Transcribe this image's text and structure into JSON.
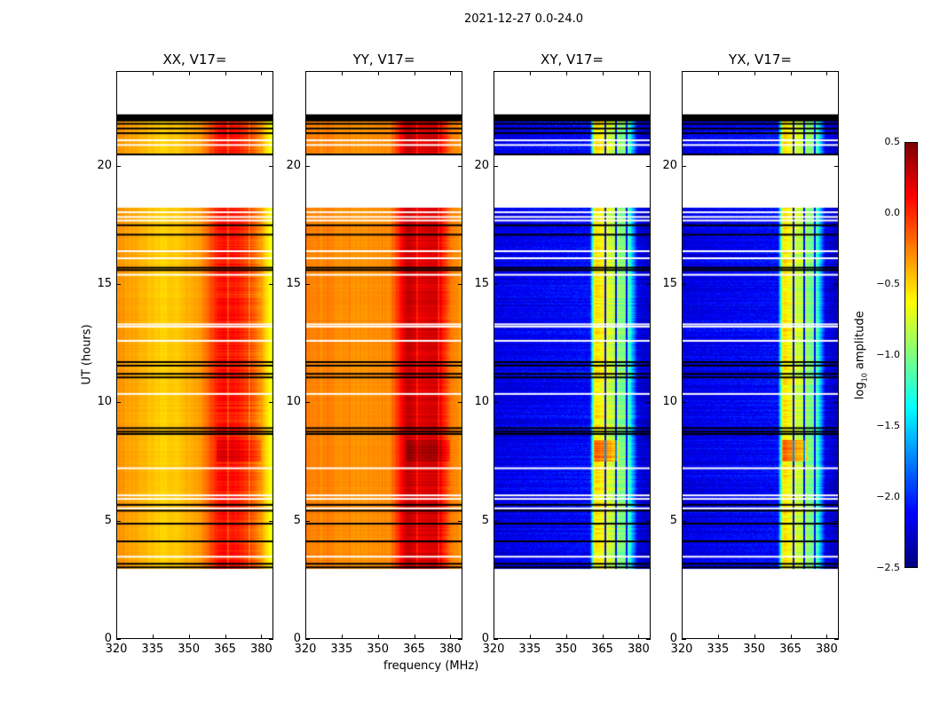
{
  "chart_data": {
    "type": "heatmap",
    "title": "2021-12-27 0.0-24.0",
    "xlabel": "frequency (MHz)",
    "ylabel": "UT (hours)",
    "xlim": [
      320,
      385
    ],
    "ylim": [
      0,
      24
    ],
    "xticks": [
      320,
      335,
      350,
      365,
      380
    ],
    "yticks": [
      0,
      5,
      10,
      15,
      20
    ],
    "panels": [
      {
        "title": "XX, V17=",
        "pol": "XX"
      },
      {
        "title": "YY, V17=",
        "pol": "YY"
      },
      {
        "title": "XY, V17=",
        "pol": "XY"
      },
      {
        "title": "YX, V17=",
        "pol": "YX"
      }
    ],
    "colorbar": {
      "label": "log10 amplitude",
      "label_main": "log",
      "label_sub": "10",
      "label_rest": " amplitude",
      "colormap": "jet",
      "clim": [
        -2.5,
        0.5
      ],
      "ticks": [
        "0.5",
        "0.0",
        "−0.5",
        "−1.0",
        "−1.5",
        "−2.0",
        "−2.5"
      ],
      "tick_values": [
        0.5,
        0.0,
        -0.5,
        -1.0,
        -1.5,
        -2.0,
        -2.5
      ]
    },
    "data_segments_hours": [
      [
        2.95,
        18.25
      ],
      [
        20.45,
        22.2
      ]
    ],
    "flagged_black_hours": [
      21.4,
      21.6,
      21.8,
      22.0,
      22.1,
      20.5,
      17.5,
      17.1,
      15.7,
      15.6,
      11.7,
      11.55,
      11.2,
      11.05,
      8.9,
      8.75,
      8.65,
      5.65,
      5.4,
      4.85,
      4.1,
      3.15,
      3.0
    ],
    "missing_white_hours": [
      21.1,
      20.9,
      18.05,
      17.85,
      17.7,
      16.4,
      16.1,
      15.4,
      13.3,
      13.2,
      12.6,
      10.35,
      7.2,
      6.05,
      5.9,
      5.5,
      3.45
    ],
    "typical_log10_amplitude": {
      "XX": {
        "freq_MHz": [
          320,
          340,
          355,
          362,
          368,
          375,
          380,
          385
        ],
        "value": [
          -0.3,
          -0.5,
          -0.35,
          0.05,
          0.1,
          -0.05,
          -0.3,
          -0.75
        ]
      },
      "YY": {
        "freq_MHz": [
          320,
          340,
          355,
          362,
          368,
          375,
          380,
          385
        ],
        "value": [
          -0.25,
          -0.3,
          -0.3,
          0.3,
          0.2,
          0.25,
          -0.2,
          -0.35
        ]
      },
      "XY": {
        "freq_MHz": [
          320,
          360,
          362,
          366,
          371,
          376,
          380,
          385
        ],
        "value": [
          -2.2,
          -2.1,
          -0.55,
          -0.65,
          -0.9,
          -1.1,
          -2.2,
          -2.3
        ]
      },
      "YX": {
        "freq_MHz": [
          320,
          360,
          362,
          366,
          371,
          376,
          380,
          385
        ],
        "value": [
          -2.2,
          -2.1,
          -0.55,
          -0.65,
          -0.9,
          -1.1,
          -2.2,
          -2.3
        ]
      }
    }
  }
}
